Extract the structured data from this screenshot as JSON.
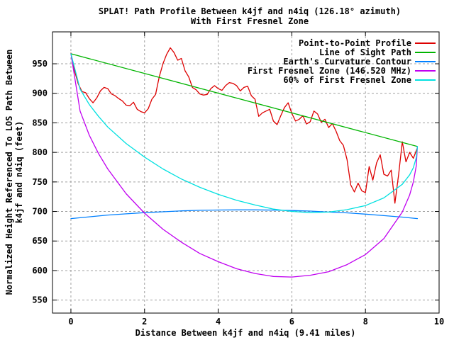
{
  "chart_data": {
    "type": "line",
    "title": "SPLAT! Path Profile Between k4jf and n4iq (126.18° azimuth)",
    "subtitle": "With First Fresnel Zone",
    "xlabel": "Distance Between k4jf and n4iq (9.41 miles)",
    "ylabel_line1": "Normalized Height Referenced To LOS Path Between",
    "ylabel_line2": "k4jf and n4iq (feet)",
    "xlim": [
      -0.5,
      10
    ],
    "ylim": [
      528,
      1004
    ],
    "x_ticks": [
      0,
      2,
      4,
      6,
      8,
      10
    ],
    "y_ticks": [
      550,
      600,
      650,
      700,
      750,
      800,
      850,
      900,
      950
    ],
    "grid": true,
    "grid_color": "#a0a0a0",
    "frame_color": "#000000",
    "background_color": "#ffffff",
    "legend_position": "top-right-inside",
    "series": [
      {
        "name": "Point-to-Point Profile",
        "color": "#dd0000",
        "x": [
          0,
          0.1,
          0.2,
          0.3,
          0.4,
          0.5,
          0.6,
          0.7,
          0.8,
          0.9,
          1,
          1.1,
          1.2,
          1.3,
          1.4,
          1.5,
          1.6,
          1.7,
          1.8,
          1.9,
          2,
          2.1,
          2.2,
          2.3,
          2.4,
          2.5,
          2.6,
          2.7,
          2.8,
          2.9,
          3,
          3.1,
          3.2,
          3.3,
          3.4,
          3.5,
          3.6,
          3.7,
          3.8,
          3.9,
          4,
          4.1,
          4.2,
          4.3,
          4.4,
          4.5,
          4.6,
          4.7,
          4.8,
          4.9,
          5,
          5.1,
          5.2,
          5.3,
          5.4,
          5.5,
          5.6,
          5.7,
          5.8,
          5.9,
          6,
          6.1,
          6.2,
          6.3,
          6.4,
          6.5,
          6.6,
          6.7,
          6.8,
          6.9,
          7,
          7.1,
          7.2,
          7.3,
          7.4,
          7.5,
          7.6,
          7.7,
          7.8,
          7.9,
          8,
          8.1,
          8.2,
          8.3,
          8.4,
          8.5,
          8.6,
          8.7,
          8.8,
          8.9,
          9,
          9.1,
          9.2,
          9.3,
          9.41
        ],
        "y": [
          968,
          938,
          916,
          903,
          901,
          891,
          884,
          892,
          904,
          910,
          908,
          899,
          896,
          891,
          887,
          880,
          879,
          885,
          873,
          869,
          867,
          874,
          890,
          898,
          928,
          950,
          966,
          977,
          969,
          956,
          959,
          938,
          928,
          910,
          906,
          899,
          897,
          898,
          908,
          913,
          908,
          905,
          913,
          918,
          917,
          913,
          904,
          910,
          912,
          896,
          890,
          861,
          867,
          870,
          873,
          853,
          847,
          862,
          876,
          884,
          866,
          853,
          856,
          862,
          848,
          852,
          870,
          865,
          851,
          856,
          842,
          849,
          836,
          820,
          812,
          788,
          745,
          733,
          748,
          735,
          732,
          776,
          753,
          782,
          796,
          763,
          760,
          770,
          714,
          762,
          818,
          784,
          800,
          790,
          808
        ]
      },
      {
        "name": "Line of Sight Path",
        "color": "#00b400",
        "x": [
          0,
          9.41
        ],
        "y": [
          967,
          810
        ]
      },
      {
        "name": "Earth's Curvature Contour",
        "color": "#0080ff",
        "x": [
          0,
          0.5,
          1,
          1.5,
          2,
          2.5,
          3,
          3.5,
          4,
          4.5,
          5,
          5.5,
          6,
          6.5,
          7,
          7.5,
          8,
          8.5,
          9,
          9.41
        ],
        "y": [
          688,
          691,
          694,
          696,
          698,
          699.5,
          701,
          702,
          702.4,
          702.7,
          702.7,
          702.3,
          701.6,
          700.6,
          699,
          697.6,
          695.5,
          693,
          690.5,
          688
        ]
      },
      {
        "name": "First Fresnel Zone (146.520 MHz)",
        "color": "#c000f0",
        "x": [
          0,
          0.25,
          0.5,
          0.75,
          1,
          1.5,
          2,
          2.5,
          3,
          3.5,
          4,
          4.5,
          5,
          5.5,
          6,
          6.5,
          7,
          7.5,
          8,
          8.5,
          9,
          9.2,
          9.3,
          9.38,
          9.41
        ],
        "y": [
          967,
          870,
          829,
          798,
          772,
          730,
          697,
          670,
          648,
          629,
          615,
          603,
          595,
          590,
          589,
          592,
          598,
          610,
          627,
          654,
          699,
          728,
          750,
          777,
          810
        ]
      },
      {
        "name": "60% of First Fresnel Zone",
        "color": "#00e0e0",
        "x": [
          0,
          0.25,
          0.5,
          0.75,
          1,
          1.5,
          2,
          2.5,
          3,
          3.5,
          4,
          4.5,
          5,
          5.5,
          6,
          6.5,
          7,
          7.5,
          8,
          8.5,
          9,
          9.2,
          9.3,
          9.38,
          9.41
        ],
        "y": [
          967,
          907,
          881,
          861,
          843,
          815,
          792,
          772,
          755,
          741,
          729,
          719,
          711,
          704,
          700,
          698,
          699,
          703,
          710,
          723,
          746,
          762,
          774,
          791,
          810
        ]
      }
    ]
  }
}
